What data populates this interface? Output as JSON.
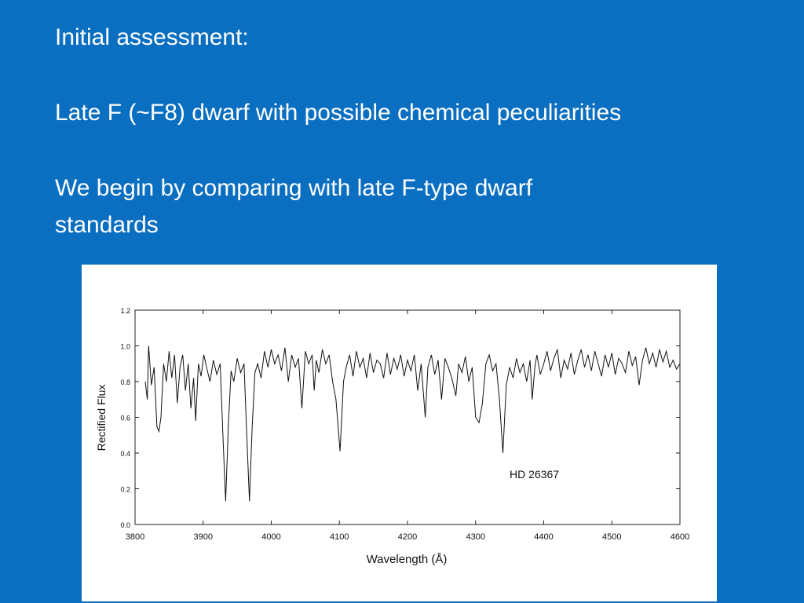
{
  "slide": {
    "heading": "Initial assessment:",
    "line1": "Late F (~F8) dwarf with possible chemical peculiarities",
    "line2a": "We begin by comparing with late F-type dwarf",
    "line2b": "standards"
  },
  "chart_data": {
    "type": "line",
    "xlabel": "Wavelength (Å)",
    "ylabel": "Rectified Flux",
    "annotation": "HD 26367",
    "color": "#111111",
    "xlim": [
      3800,
      4600
    ],
    "xticks": [
      3800,
      3900,
      4000,
      4100,
      4200,
      4300,
      4400,
      4500,
      4600
    ],
    "ylim": [
      0,
      1.2
    ],
    "yticks": [
      {
        "value": 0,
        "label": "0.0"
      },
      0.2,
      0.4,
      0.6,
      0.8,
      {
        "value": 1,
        "label": "1.0"
      },
      1.2
    ],
    "x": [
      3815,
      3818,
      3820,
      3824,
      3828,
      3832,
      3835,
      3838,
      3842,
      3846,
      3850,
      3854,
      3858,
      3862,
      3866,
      3870,
      3874,
      3878,
      3882,
      3886,
      3889,
      3893,
      3897,
      3901,
      3905,
      3910,
      3915,
      3920,
      3925,
      3929,
      3933,
      3937,
      3941,
      3945,
      3950,
      3955,
      3960,
      3964,
      3968,
      3972,
      3976,
      3980,
      3985,
      3990,
      3995,
      4000,
      4005,
      4010,
      4015,
      4020,
      4025,
      4030,
      4035,
      4040,
      4045,
      4050,
      4055,
      4060,
      4063,
      4066,
      4070,
      4075,
      4080,
      4085,
      4090,
      4095,
      4101,
      4106,
      4110,
      4115,
      4120,
      4125,
      4130,
      4135,
      4140,
      4145,
      4150,
      4155,
      4160,
      4165,
      4170,
      4175,
      4180,
      4185,
      4190,
      4195,
      4200,
      4205,
      4210,
      4215,
      4220,
      4226,
      4230,
      4235,
      4240,
      4245,
      4250,
      4255,
      4260,
      4265,
      4271,
      4275,
      4280,
      4285,
      4290,
      4295,
      4300,
      4305,
      4310,
      4315,
      4320,
      4325,
      4330,
      4335,
      4340,
      4345,
      4350,
      4355,
      4360,
      4365,
      4370,
      4375,
      4380,
      4383,
      4387,
      4390,
      4395,
      4400,
      4405,
      4410,
      4415,
      4420,
      4425,
      4430,
      4435,
      4440,
      4445,
      4450,
      4455,
      4460,
      4465,
      4470,
      4475,
      4480,
      4485,
      4490,
      4495,
      4500,
      4505,
      4510,
      4515,
      4520,
      4525,
      4530,
      4535,
      4540,
      4545,
      4550,
      4555,
      4560,
      4565,
      4570,
      4575,
      4580,
      4585,
      4590,
      4595,
      4600
    ],
    "values": [
      0.8,
      0.7,
      1.0,
      0.78,
      0.88,
      0.55,
      0.52,
      0.6,
      0.9,
      0.8,
      0.97,
      0.82,
      0.95,
      0.68,
      0.88,
      0.95,
      0.75,
      0.9,
      0.65,
      0.82,
      0.58,
      0.9,
      0.83,
      0.95,
      0.88,
      0.8,
      0.92,
      0.84,
      0.9,
      0.5,
      0.13,
      0.55,
      0.86,
      0.8,
      0.93,
      0.85,
      0.9,
      0.5,
      0.13,
      0.55,
      0.85,
      0.9,
      0.82,
      0.97,
      0.88,
      0.98,
      0.9,
      0.95,
      0.86,
      0.99,
      0.8,
      0.95,
      0.88,
      0.93,
      0.65,
      0.97,
      0.9,
      0.95,
      0.75,
      0.92,
      0.85,
      0.98,
      0.9,
      0.95,
      0.8,
      0.7,
      0.41,
      0.8,
      0.88,
      0.95,
      0.83,
      0.97,
      0.88,
      0.93,
      0.82,
      0.96,
      0.85,
      0.92,
      0.9,
      0.82,
      0.96,
      0.84,
      0.93,
      0.87,
      0.95,
      0.83,
      0.92,
      0.86,
      0.95,
      0.75,
      0.9,
      0.6,
      0.88,
      0.95,
      0.84,
      0.92,
      0.7,
      0.93,
      0.88,
      0.82,
      0.72,
      0.9,
      0.85,
      0.94,
      0.8,
      0.88,
      0.6,
      0.57,
      0.68,
      0.9,
      0.95,
      0.86,
      0.9,
      0.7,
      0.4,
      0.78,
      0.88,
      0.82,
      0.93,
      0.85,
      0.9,
      0.8,
      0.92,
      0.7,
      0.88,
      0.95,
      0.84,
      0.9,
      0.97,
      0.86,
      0.93,
      0.98,
      0.82,
      0.92,
      0.87,
      0.96,
      0.84,
      0.92,
      0.98,
      0.88,
      0.95,
      0.86,
      0.97,
      0.9,
      0.83,
      0.95,
      0.88,
      0.96,
      0.84,
      0.93,
      0.9,
      0.85,
      0.97,
      0.89,
      0.94,
      0.78,
      0.92,
      0.99,
      0.9,
      0.96,
      0.88,
      0.98,
      0.91,
      0.97,
      0.88,
      0.92,
      0.87,
      0.9
    ]
  }
}
